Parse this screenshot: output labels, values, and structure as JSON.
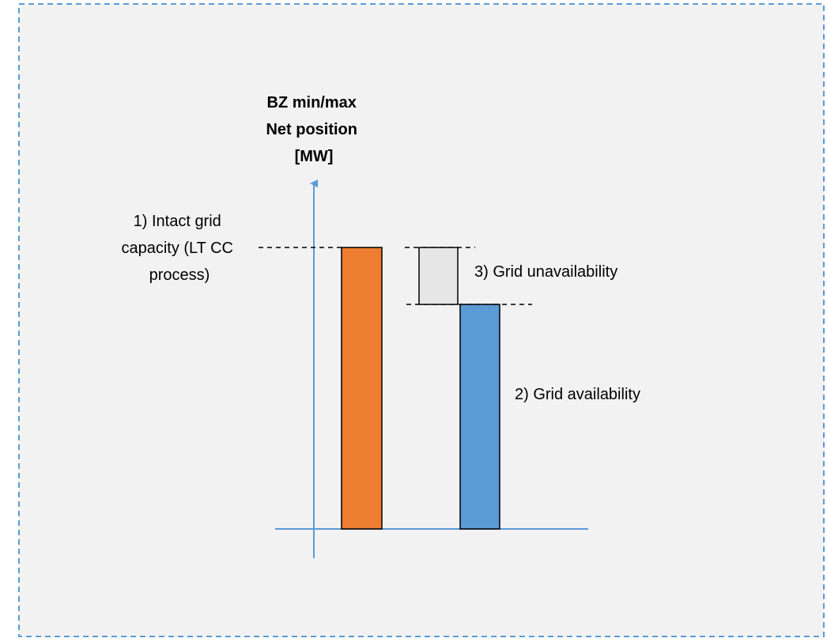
{
  "colors": {
    "background": "#f2f2f2",
    "frame_border": "#5b9bd5",
    "axis": "#5b9bd5",
    "intact_bar": "#ed7d31",
    "unavailability_box": "#e7e6e6",
    "availability_bar": "#5b9bd5",
    "bar_outline": "#000000",
    "text": "#000000"
  },
  "axis_title": {
    "lines": [
      "BZ min/max",
      "Net position",
      "[MW]"
    ]
  },
  "labels": {
    "intact": [
      "1) Intact grid",
      "capacity (LT CC",
      "process)"
    ],
    "unavailability": "3) Grid unavailability",
    "availability": "2) Grid availability"
  }
}
